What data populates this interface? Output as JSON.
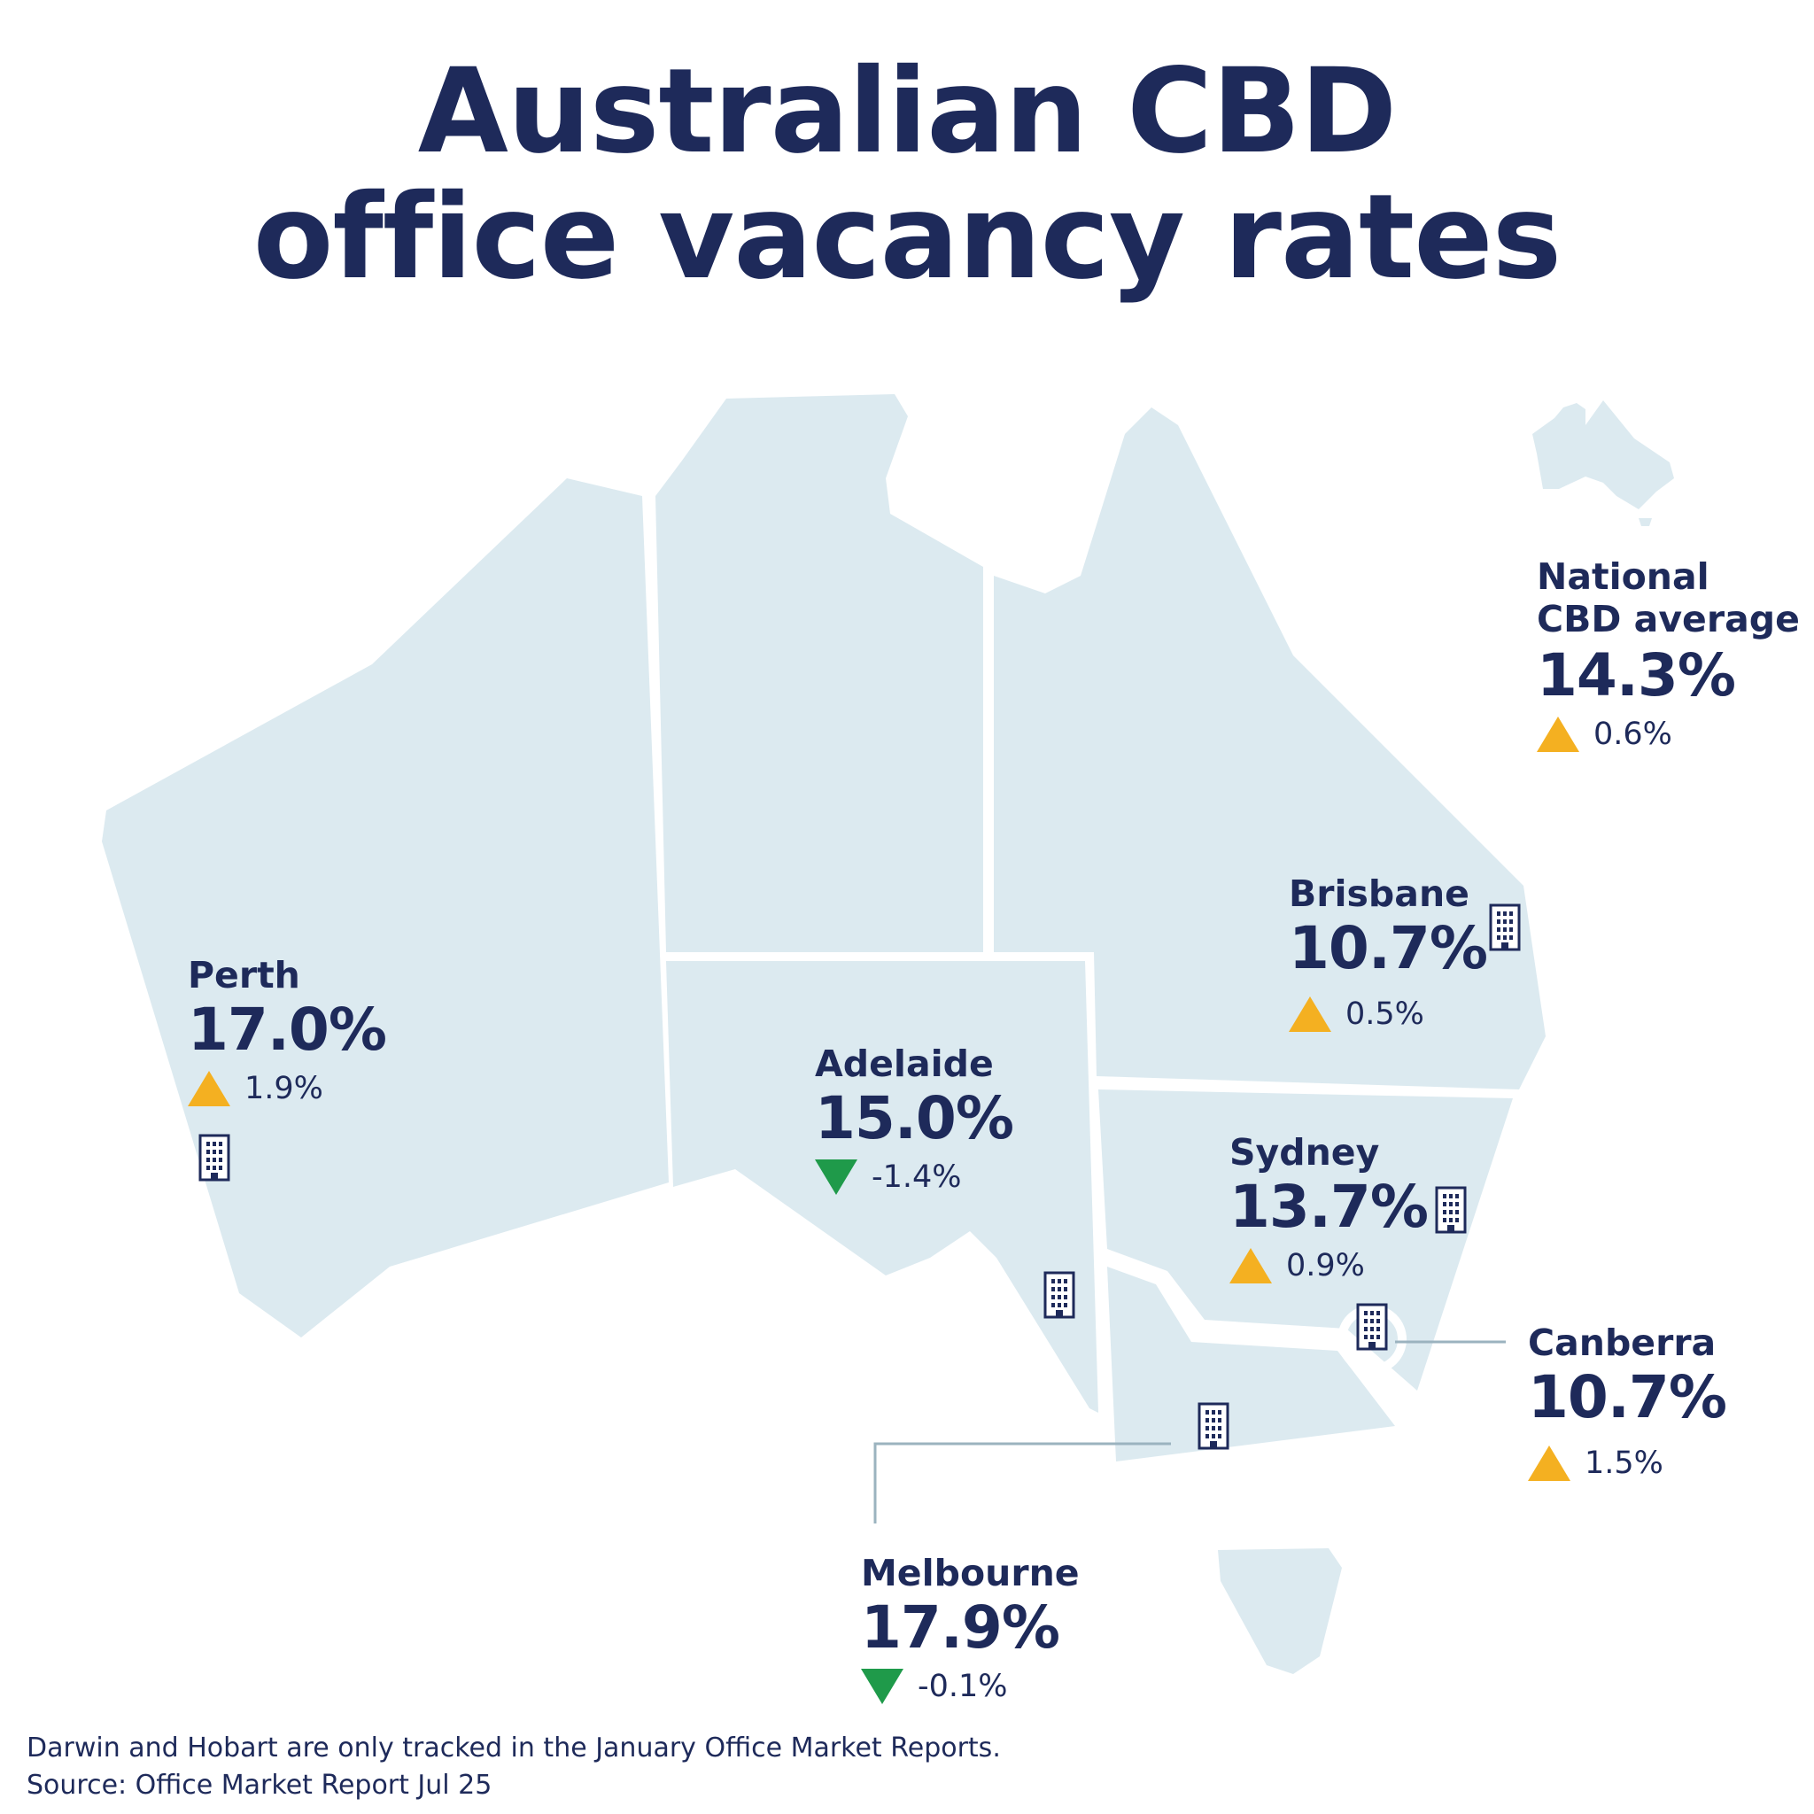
{
  "title": {
    "line1": "Australian CBD",
    "line2": "office vacancy rates"
  },
  "colors": {
    "navy": "#1e2a5a",
    "land": "#dceaf0",
    "up_arrow": "#f4b021",
    "down_arrow": "#1f9a4a"
  },
  "icons": {
    "building": "building-icon",
    "up": "triangle-up-icon",
    "down": "triangle-down-icon",
    "inset": "australia-silhouette-icon"
  },
  "national": {
    "label_line1": "National",
    "label_line2": "CBD average",
    "rate": "14.3%",
    "change": "0.6%",
    "direction": "up"
  },
  "cities": {
    "perth": {
      "name": "Perth",
      "rate": "17.0%",
      "change": "1.9%",
      "direction": "up"
    },
    "adelaide": {
      "name": "Adelaide",
      "rate": "15.0%",
      "change": "-1.4%",
      "direction": "down"
    },
    "brisbane": {
      "name": "Brisbane",
      "rate": "10.7%",
      "change": "0.5%",
      "direction": "up"
    },
    "sydney": {
      "name": "Sydney",
      "rate": "13.7%",
      "change": "0.9%",
      "direction": "up"
    },
    "canberra": {
      "name": "Canberra",
      "rate": "10.7%",
      "change": "1.5%",
      "direction": "up"
    },
    "melbourne": {
      "name": "Melbourne",
      "rate": "17.9%",
      "change": "-0.1%",
      "direction": "down"
    }
  },
  "footnote": {
    "line1": "Darwin and Hobart are only tracked in the January Office Market Reports.",
    "line2": "Source: Office Market Report Jul 25"
  }
}
